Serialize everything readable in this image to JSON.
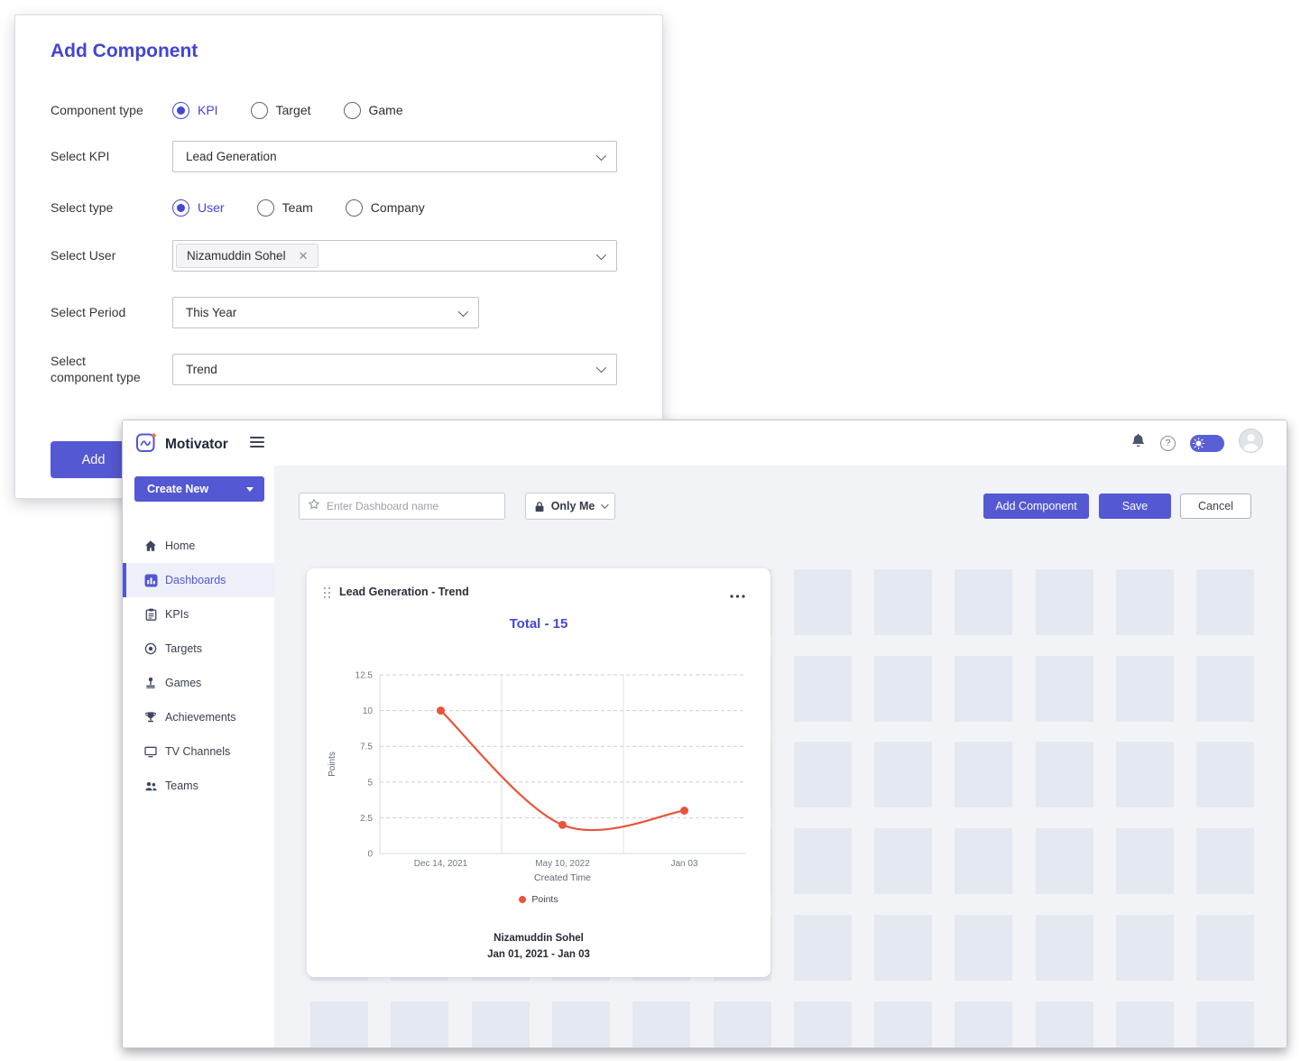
{
  "colors": {
    "accent": "#5458d2",
    "title_blue": "#4245d6",
    "chart_line": "#e8553c",
    "active_nav": "#5156d6",
    "placeholder_cell": "#e4e8f1"
  },
  "modal": {
    "title": "Add Component",
    "component_type": {
      "label": "Component type",
      "options": [
        "KPI",
        "Target",
        "Game"
      ],
      "selected": "KPI"
    },
    "select_kpi": {
      "label": "Select KPI",
      "value": "Lead Generation"
    },
    "select_type": {
      "label": "Select type",
      "options": [
        "User",
        "Team",
        "Company"
      ],
      "selected": "User"
    },
    "select_user": {
      "label": "Select User",
      "chips": [
        "Nizamuddin Sohel"
      ]
    },
    "select_period": {
      "label": "Select Period",
      "value": "This Year"
    },
    "select_component_type": {
      "label": "Select component type",
      "value": "Trend"
    },
    "add_button": "Add"
  },
  "app": {
    "brand": "Motivator",
    "create_new_button": "Create New",
    "sidebar": [
      {
        "label": "Home",
        "icon": "home-icon",
        "active": false
      },
      {
        "label": "Dashboards",
        "icon": "dashboards-icon",
        "active": true
      },
      {
        "label": "KPIs",
        "icon": "kpis-icon",
        "active": false
      },
      {
        "label": "Targets",
        "icon": "targets-icon",
        "active": false
      },
      {
        "label": "Games",
        "icon": "games-icon",
        "active": false
      },
      {
        "label": "Achievements",
        "icon": "achievements-icon",
        "active": false
      },
      {
        "label": "TV Channels",
        "icon": "tv-channels-icon",
        "active": false
      },
      {
        "label": "Teams",
        "icon": "teams-icon",
        "active": false
      }
    ],
    "toolbar": {
      "dashboard_name_placeholder": "Enter Dashboard name",
      "visibility": "Only Me",
      "add_component_button": "Add Component",
      "save_button": "Save",
      "cancel_button": "Cancel"
    }
  },
  "card": {
    "title": "Lead Generation - Trend",
    "total_label": "Total - 15",
    "footer_name": "Nizamuddin Sohel",
    "footer_range": "Jan 01, 2021 - Jan 03"
  },
  "chart_data": {
    "type": "line",
    "categories": [
      "Dec 14, 2021",
      "May 10, 2022",
      "Jan 03"
    ],
    "series": [
      {
        "name": "Points",
        "values": [
          10,
          2,
          3
        ],
        "color": "#e8553c"
      }
    ],
    "title": "Total - 15",
    "xlabel": "Created Time",
    "ylabel": "Points",
    "ylim": [
      0,
      12.5
    ],
    "yticks": [
      0,
      2.5,
      5,
      7.5,
      10,
      12.5
    ],
    "legend_position": "bottom",
    "grid": true,
    "smooth": true
  }
}
